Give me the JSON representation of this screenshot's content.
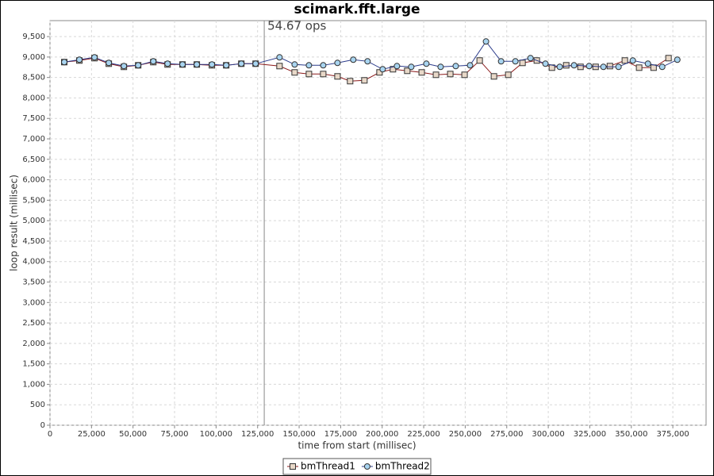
{
  "chart_data": {
    "type": "line",
    "title": "scimark.fft.large",
    "x_label": "time from start (millisec)",
    "y_label": "loop result (millisec)",
    "xlim": [
      0,
      395000
    ],
    "ylim": [
      0,
      9890
    ],
    "grid": true,
    "xticks": [
      0,
      {
        "value": 25000,
        "label": "25,000"
      },
      {
        "value": 50000,
        "label": "50,000"
      },
      {
        "value": 75000,
        "label": "75,000"
      },
      {
        "value": 100000,
        "label": "100,000"
      },
      {
        "value": 125000,
        "label": "125,000"
      },
      {
        "value": 150000,
        "label": "150,000"
      },
      {
        "value": 175000,
        "label": "175,000"
      },
      {
        "value": 200000,
        "label": "200,000"
      },
      {
        "value": 225000,
        "label": "225,000"
      },
      {
        "value": 250000,
        "label": "250,000"
      },
      {
        "value": 275000,
        "label": "275,000"
      },
      {
        "value": 300000,
        "label": "300,000"
      },
      {
        "value": 325000,
        "label": "325,000"
      },
      {
        "value": 350000,
        "label": "350,000"
      },
      {
        "value": 375000,
        "label": "375,000"
      }
    ],
    "yticks": [
      0,
      500,
      {
        "value": 1000,
        "label": "1,000"
      },
      {
        "value": 1500,
        "label": "1,500"
      },
      {
        "value": 2000,
        "label": "2,000"
      },
      {
        "value": 2500,
        "label": "2,500"
      },
      {
        "value": 3000,
        "label": "3,000"
      },
      {
        "value": 3500,
        "label": "3,500"
      },
      {
        "value": 4000,
        "label": "4,000"
      },
      {
        "value": 4500,
        "label": "4,500"
      },
      {
        "value": 5000,
        "label": "5,000"
      },
      {
        "value": 5500,
        "label": "5,500"
      },
      {
        "value": 6000,
        "label": "6,000"
      },
      {
        "value": 6500,
        "label": "6,500"
      },
      {
        "value": 7000,
        "label": "7,000"
      },
      {
        "value": 7500,
        "label": "7,500"
      },
      {
        "value": 8000,
        "label": "8,000"
      },
      {
        "value": 8500,
        "label": "8,500"
      },
      {
        "value": 9000,
        "label": "9,000"
      },
      {
        "value": 9500,
        "label": "9,500"
      }
    ],
    "marker": {
      "x": 129000,
      "label": "54.67 ops"
    },
    "series": [
      {
        "name": "bmThread1",
        "color": "#8b1a1a",
        "fill": "#e8d8c8",
        "shape": "square",
        "x": [
          8600,
          17700,
          26800,
          35400,
          44500,
          53100,
          62200,
          70800,
          79800,
          88400,
          97500,
          106100,
          115200,
          123800,
          138200,
          147300,
          155900,
          164500,
          173100,
          180700,
          189300,
          198400,
          206500,
          215100,
          223800,
          232400,
          241000,
          249600,
          258700,
          267300,
          275900,
          284500,
          293100,
          302200,
          310800,
          319400,
          328500,
          337100,
          346100,
          354700,
          363400,
          372400
        ],
        "values": [
          8876,
          8915,
          8973,
          8837,
          8760,
          8798,
          8876,
          8818,
          8818,
          8818,
          8798,
          8798,
          8837,
          8837,
          8779,
          8624,
          8585,
          8585,
          8527,
          8411,
          8430,
          8624,
          8702,
          8663,
          8624,
          8566,
          8585,
          8566,
          8915,
          8527,
          8566,
          8857,
          8915,
          8740,
          8798,
          8760,
          8760,
          8779,
          8915,
          8740,
          8740,
          8973
        ]
      },
      {
        "name": "bmThread2",
        "color": "#2a3a8a",
        "fill": "#a8d4f0",
        "shape": "circle",
        "x": [
          8600,
          17700,
          26800,
          35400,
          44500,
          53100,
          62200,
          70800,
          79800,
          88400,
          97500,
          106100,
          115200,
          123800,
          138200,
          147300,
          155900,
          164500,
          173100,
          182600,
          191200,
          200300,
          208900,
          217500,
          226600,
          235200,
          244300,
          252900,
          262500,
          271600,
          280200,
          289300,
          298300,
          306900,
          315500,
          324600,
          333200,
          342300,
          350900,
          360000,
          368600,
          377700
        ],
        "values": [
          8876,
          8934,
          8992,
          8857,
          8779,
          8798,
          8895,
          8837,
          8818,
          8818,
          8818,
          8798,
          8837,
          8837,
          8992,
          8818,
          8798,
          8798,
          8857,
          8934,
          8895,
          8702,
          8779,
          8760,
          8837,
          8760,
          8779,
          8798,
          9380,
          8895,
          8895,
          8973,
          8837,
          8760,
          8798,
          8779,
          8760,
          8760,
          8915,
          8837,
          8760,
          8934
        ]
      }
    ]
  }
}
